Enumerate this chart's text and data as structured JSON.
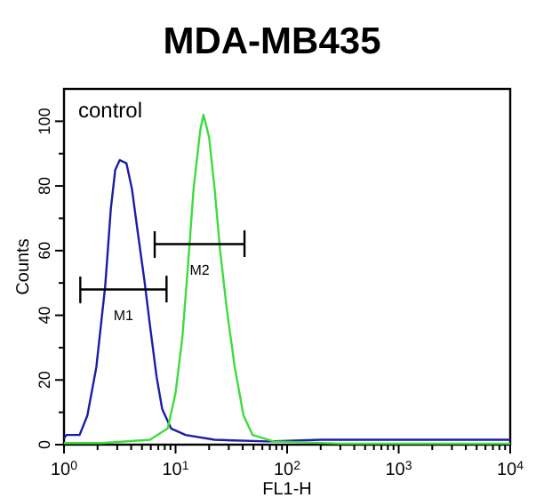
{
  "chart_data": {
    "type": "line",
    "title": "MDA-MB435",
    "xlabel": "FL1-H",
    "ylabel": "Counts",
    "log": "x",
    "grid": false,
    "marker": "none",
    "line_style": "solid",
    "xlim": [
      1,
      10000
    ],
    "ylim": [
      0,
      110
    ],
    "xticks": [
      {
        "value": 1,
        "label": "10$^{0}$"
      },
      {
        "value": 2,
        "label": null
      },
      {
        "value": 3,
        "label": null
      },
      {
        "value": 4,
        "label": null
      },
      {
        "value": 5,
        "label": null
      },
      {
        "value": 6,
        "label": null
      },
      {
        "value": 7,
        "label": null
      },
      {
        "value": 8,
        "label": null
      },
      {
        "value": 9,
        "label": null
      },
      {
        "value": 10,
        "label": "10$^{1}$"
      },
      {
        "value": 20,
        "label": null
      },
      {
        "value": 30,
        "label": null
      },
      {
        "value": 40,
        "label": null
      },
      {
        "value": 50,
        "label": null
      },
      {
        "value": 60,
        "label": null
      },
      {
        "value": 70,
        "label": null
      },
      {
        "value": 80,
        "label": null
      },
      {
        "value": 90,
        "label": null
      },
      {
        "value": 100,
        "label": "10$^{2}$"
      },
      {
        "value": 200,
        "label": null
      },
      {
        "value": 300,
        "label": null
      },
      {
        "value": 400,
        "label": null
      },
      {
        "value": 500,
        "label": null
      },
      {
        "value": 600,
        "label": null
      },
      {
        "value": 700,
        "label": null
      },
      {
        "value": 800,
        "label": null
      },
      {
        "value": 900,
        "label": null
      },
      {
        "value": 1000,
        "label": "10$^{3}$"
      },
      {
        "value": 2000,
        "label": null
      },
      {
        "value": 3000,
        "label": null
      },
      {
        "value": 4000,
        "label": null
      },
      {
        "value": 5000,
        "label": null
      },
      {
        "value": 6000,
        "label": null
      },
      {
        "value": 7000,
        "label": null
      },
      {
        "value": 8000,
        "label": null
      },
      {
        "value": 9000,
        "label": null
      },
      {
        "value": 10000,
        "label": "10$^{4}$"
      }
    ],
    "yticks": [
      0,
      {
        "value": 10,
        "label": null
      },
      20,
      {
        "value": 30,
        "label": null
      },
      40,
      {
        "value": 50,
        "label": null
      },
      60,
      {
        "value": 70,
        "label": null
      },
      80,
      {
        "value": 90,
        "label": null
      },
      100
    ],
    "series": [
      {
        "color": "#1c1ca8",
        "x": [
          1,
          1.05,
          1.38,
          1.62,
          1.95,
          2.34,
          2.63,
          2.88,
          3.16,
          3.63,
          4.07,
          4.57,
          5.25,
          5.89,
          6.76,
          7.59,
          9.12,
          12.3,
          22.4,
          67.6,
          200,
          1000,
          10000
        ],
        "values": [
          2,
          3,
          3,
          9,
          24,
          49,
          73,
          85,
          88,
          87,
          79,
          66,
          51,
          37,
          21,
          11,
          5,
          3,
          1.5,
          1,
          1.5,
          1.5,
          1.5
        ]
      },
      {
        "color": "#3ddc3d",
        "x": [
          1,
          2.19,
          5.89,
          8.51,
          10,
          11.5,
          12.9,
          14.5,
          16.6,
          17.8,
          20,
          22.4,
          25.1,
          28.8,
          33.9,
          40.7,
          49,
          75.9,
          300,
          10000
        ],
        "values": [
          0.5,
          0.5,
          1.5,
          5,
          16,
          33,
          55,
          79,
          97,
          102,
          95,
          79,
          60,
          42,
          24,
          9,
          3,
          1,
          0.3,
          0.3
        ]
      },
      {
        "name": "M1",
        "color": "#000000",
        "x": [
          1.4,
          1.4,
          1.4,
          8.3,
          8.3,
          8.3
        ],
        "values": [
          52,
          44,
          48,
          48,
          52,
          44
        ]
      },
      {
        "name": "M2",
        "color": "#000000",
        "x": [
          6.5,
          6.5,
          6.5,
          41.5,
          41.5,
          41.5
        ],
        "values": [
          66,
          58,
          62,
          62,
          66,
          58
        ]
      }
    ],
    "annotations": [
      "control"
    ]
  }
}
